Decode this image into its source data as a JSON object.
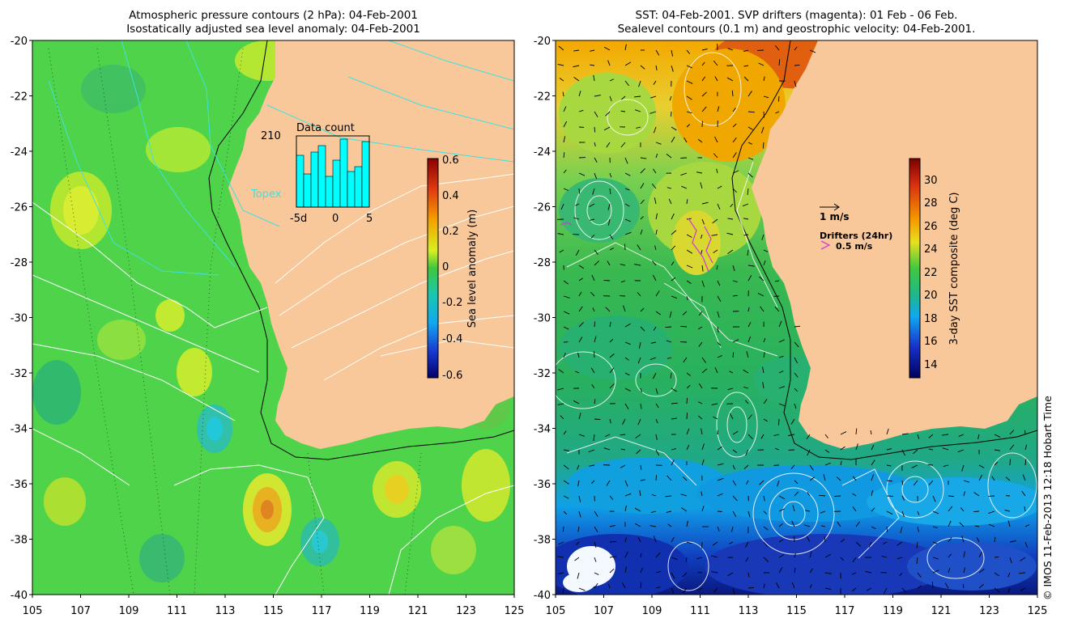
{
  "left_panel": {
    "title_line1": "Atmospheric pressure contours (2 hPa): 04-Feb-2001",
    "title_line2": "Isostatically adjusted sea level anomaly: 04-Feb-2001",
    "inset": {
      "title": "Data count",
      "max_label": "210",
      "series_label": "Topex",
      "ticks": [
        "-5d",
        "0",
        "5"
      ],
      "bar_color": "#00ffff"
    },
    "colorbar": {
      "label": "Sea level anomaly (m)",
      "ticks": [
        "0.6",
        "0.4",
        "0.2",
        "0",
        "-0.2",
        "-0.4",
        "-0.6"
      ]
    }
  },
  "right_panel": {
    "title_line1": "SST: 04-Feb-2001. SVP drifters (magenta): 01 Feb - 06 Feb.",
    "title_line2": "Sealevel contours (0.1 m) and geostrophic velocity: 04-Feb-2001.",
    "velocity_key": "1 m/s",
    "drifter_key_title": "Drifters (24hr)",
    "drifter_key_speed": "0.5 m/s",
    "colorbar": {
      "label": "3-day SST composite (deg C)",
      "ticks": [
        "30",
        "28",
        "26",
        "24",
        "22",
        "20",
        "18",
        "16",
        "14"
      ]
    }
  },
  "axes": {
    "y_ticks": [
      "-20",
      "-22",
      "-24",
      "-26",
      "-28",
      "-30",
      "-32",
      "-34",
      "-36",
      "-38",
      "-40"
    ],
    "x_ticks": [
      "105",
      "107",
      "109",
      "111",
      "113",
      "115",
      "117",
      "119",
      "121",
      "123",
      "125"
    ]
  },
  "credit": "© IMOS 11-Feb-2013 12:18 Hobart Time",
  "colors": {
    "land": "#f8c89a",
    "sla_background": "#4fd34a",
    "sst_background": "#2fb24a",
    "drifter_color": "#d040d0",
    "contour_white": "#ffffff",
    "contour_cyan": "#40e0e0"
  }
}
